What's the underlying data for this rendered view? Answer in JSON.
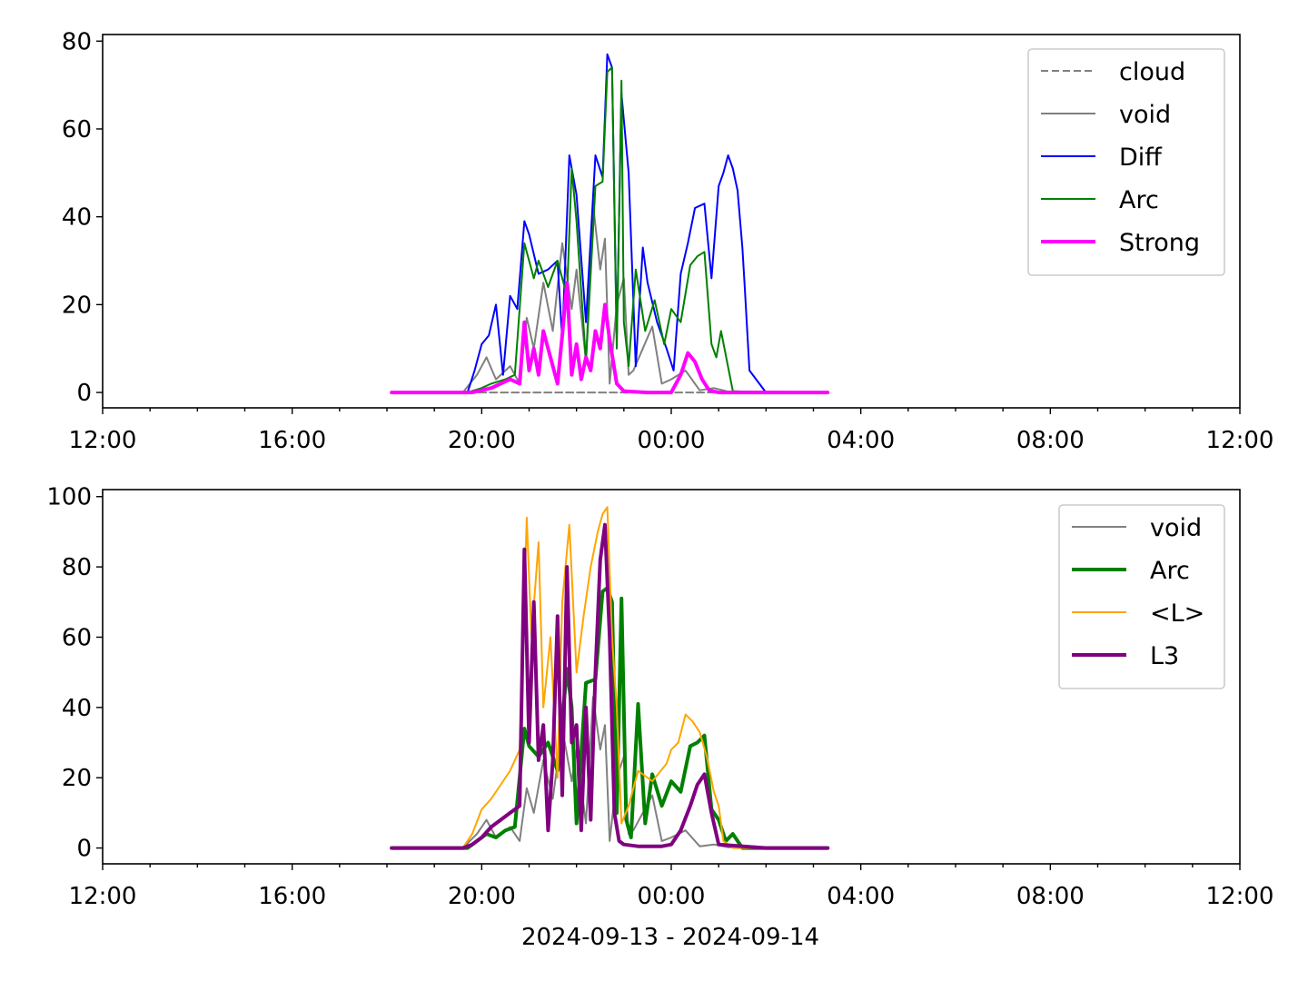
{
  "figure": {
    "xlabel": "2024-09-13 - 2024-09-14"
  },
  "chart_data": [
    {
      "type": "line",
      "title": "",
      "xlabel": "",
      "ylabel": "",
      "x_unit": "hours since 2024-09-13 00:00",
      "xlim": [
        12,
        36
      ],
      "ylim": [
        -3.5,
        81.5
      ],
      "x_ticks": [
        12,
        16,
        20,
        24,
        28,
        32,
        36
      ],
      "x_tick_labels": [
        "12:00",
        "16:00",
        "20:00",
        "00:00",
        "04:00",
        "08:00",
        "12:00"
      ],
      "y_ticks": [
        0,
        20,
        40,
        60,
        80
      ],
      "y_tick_labels": [
        "0",
        "20",
        "40",
        "60",
        "80"
      ],
      "grid": false,
      "legend": "top-right",
      "series": [
        {
          "name": "cloud",
          "color": "#808080",
          "line_style": "dashed",
          "line_width": "thin",
          "x": [
            18.1,
            27.3
          ],
          "values": [
            0,
            0
          ]
        },
        {
          "name": "void",
          "color": "#808080",
          "line_style": "solid",
          "line_width": "thin",
          "x": [
            18.1,
            19.6,
            19.9,
            20.1,
            20.3,
            20.6,
            20.8,
            20.95,
            21.1,
            21.3,
            21.5,
            21.7,
            21.9,
            22.0,
            22.2,
            22.35,
            22.5,
            22.6,
            22.7,
            22.85,
            23.0,
            23.1,
            23.2,
            23.4,
            23.6,
            23.8,
            24.0,
            24.3,
            24.6,
            24.9,
            25.2,
            26.0,
            27.3
          ],
          "values": [
            0,
            0,
            4,
            8,
            3,
            6,
            2,
            17,
            10,
            25,
            14,
            34,
            19,
            28,
            7,
            43,
            28,
            35,
            2,
            20,
            26,
            4,
            5,
            10,
            15,
            2,
            3,
            5,
            0.5,
            1,
            0.2,
            0.2,
            0
          ]
        },
        {
          "name": "Diff",
          "color": "#0000ff",
          "line_style": "solid",
          "line_width": "thin",
          "x": [
            18.1,
            19.7,
            19.85,
            20.0,
            20.15,
            20.3,
            20.45,
            20.6,
            20.75,
            20.9,
            21.0,
            21.2,
            21.4,
            21.6,
            21.7,
            21.85,
            22.0,
            22.2,
            22.4,
            22.55,
            22.65,
            22.75,
            22.85,
            22.95,
            23.1,
            23.25,
            23.4,
            23.5,
            23.7,
            23.9,
            24.05,
            24.2,
            24.35,
            24.5,
            24.7,
            24.85,
            25.0,
            25.1,
            25.2,
            25.3,
            25.4,
            25.5,
            25.55,
            25.65,
            26.0,
            27.3
          ],
          "values": [
            0,
            0,
            5,
            11,
            13,
            20,
            4,
            22,
            19,
            39,
            36,
            27,
            28,
            30,
            12,
            54,
            45,
            16,
            54,
            49,
            77,
            74,
            12,
            68,
            50,
            6,
            33,
            25,
            16,
            10,
            5,
            27,
            34,
            42,
            43,
            26,
            47,
            50,
            54,
            51,
            46,
            33,
            24,
            5,
            0,
            0
          ]
        },
        {
          "name": "Arc",
          "color": "#008000",
          "line_style": "solid",
          "line_width": "thin",
          "x": [
            18.1,
            19.7,
            20.0,
            20.2,
            20.5,
            20.7,
            20.9,
            21.0,
            21.1,
            21.2,
            21.4,
            21.6,
            21.8,
            21.9,
            22.0,
            22.2,
            22.4,
            22.55,
            22.65,
            22.75,
            22.85,
            22.95,
            23.0,
            23.1,
            23.25,
            23.45,
            23.65,
            23.85,
            24.0,
            24.2,
            24.4,
            24.55,
            24.7,
            24.85,
            24.95,
            25.05,
            25.3,
            26.0,
            27.3
          ],
          "values": [
            0,
            0,
            1,
            2,
            3,
            4,
            34,
            30,
            26,
            30,
            24,
            30,
            22,
            51,
            39,
            7,
            47,
            48,
            73,
            74,
            10,
            71,
            16,
            6,
            28,
            14,
            21,
            11,
            19,
            16,
            29,
            31,
            32,
            11,
            8,
            14,
            0.3,
            0,
            0
          ]
        },
        {
          "name": "Strong",
          "color": "#ff00ff",
          "line_style": "solid",
          "line_width": "thick",
          "x": [
            18.1,
            19.8,
            20.0,
            20.2,
            20.4,
            20.6,
            20.8,
            20.9,
            21.0,
            21.1,
            21.2,
            21.3,
            21.45,
            21.6,
            21.7,
            21.8,
            21.9,
            22.0,
            22.1,
            22.2,
            22.3,
            22.4,
            22.5,
            22.6,
            22.7,
            22.85,
            23.0,
            23.5,
            24.0,
            24.2,
            24.35,
            24.5,
            24.65,
            24.8,
            25.0,
            26.0,
            27.3
          ],
          "values": [
            0,
            0,
            0.5,
            1,
            2,
            3,
            2,
            16,
            5,
            10,
            4,
            14,
            8,
            2,
            13,
            25,
            4,
            11,
            3,
            8,
            5,
            14,
            10,
            20,
            12,
            2,
            0.3,
            0,
            0,
            4,
            9,
            7,
            3,
            0.5,
            0,
            0,
            0
          ]
        }
      ]
    },
    {
      "type": "line",
      "title": "",
      "xlabel": "2024-09-13 - 2024-09-14",
      "ylabel": "",
      "x_unit": "hours since 2024-09-13 00:00",
      "xlim": [
        12,
        36
      ],
      "ylim": [
        -4.5,
        102
      ],
      "x_ticks": [
        12,
        16,
        20,
        24,
        28,
        32,
        36
      ],
      "x_tick_labels": [
        "12:00",
        "16:00",
        "20:00",
        "00:00",
        "04:00",
        "08:00",
        "12:00"
      ],
      "y_ticks": [
        0,
        20,
        40,
        60,
        80,
        100
      ],
      "y_tick_labels": [
        "0",
        "20",
        "40",
        "60",
        "80",
        "100"
      ],
      "grid": false,
      "legend": "top-right",
      "series": [
        {
          "name": "void",
          "color": "#808080",
          "line_style": "solid",
          "line_width": "thin",
          "x": [
            18.1,
            19.6,
            19.9,
            20.1,
            20.3,
            20.6,
            20.8,
            20.95,
            21.1,
            21.3,
            21.5,
            21.7,
            21.9,
            22.0,
            22.2,
            22.35,
            22.5,
            22.6,
            22.7,
            22.85,
            23.0,
            23.1,
            23.2,
            23.4,
            23.6,
            23.8,
            24.0,
            24.3,
            24.6,
            24.9,
            25.2,
            26.0,
            27.3
          ],
          "values": [
            0,
            0,
            4,
            8,
            3,
            6,
            2,
            17,
            10,
            25,
            14,
            34,
            19,
            28,
            7,
            43,
            28,
            35,
            2,
            20,
            26,
            4,
            5,
            10,
            15,
            2,
            3,
            5,
            0.5,
            1,
            0.2,
            0.2,
            0
          ]
        },
        {
          "name": "Arc",
          "color": "#008000",
          "line_style": "solid",
          "line_width": "thick",
          "x": [
            18.1,
            19.7,
            19.9,
            20.1,
            20.3,
            20.5,
            20.7,
            20.9,
            21.0,
            21.2,
            21.4,
            21.6,
            21.8,
            21.9,
            22.0,
            22.2,
            22.4,
            22.55,
            22.65,
            22.75,
            22.85,
            22.95,
            23.05,
            23.15,
            23.3,
            23.45,
            23.6,
            23.8,
            24.0,
            24.2,
            24.4,
            24.55,
            24.7,
            24.85,
            25.0,
            25.15,
            25.3,
            25.5,
            26.0,
            27.3
          ],
          "values": [
            0,
            0,
            2,
            4,
            3,
            5,
            6,
            34,
            29,
            26,
            30,
            22,
            51,
            40,
            7,
            47,
            48,
            73,
            74,
            70,
            10,
            71,
            8,
            3,
            41,
            7,
            21,
            12,
            19,
            16,
            29,
            30,
            32,
            11,
            8,
            2,
            4,
            0,
            0,
            0
          ]
        },
        {
          "name": "<L>",
          "color": "#ffa500",
          "line_style": "solid",
          "line_width": "thin",
          "x": [
            18.1,
            19.6,
            19.8,
            20.0,
            20.2,
            20.4,
            20.6,
            20.8,
            20.95,
            21.05,
            21.2,
            21.3,
            21.45,
            21.6,
            21.7,
            21.85,
            22.0,
            22.15,
            22.3,
            22.45,
            22.55,
            22.65,
            22.75,
            22.85,
            22.95,
            23.1,
            23.3,
            23.6,
            23.9,
            24.0,
            24.15,
            24.3,
            24.45,
            24.6,
            24.75,
            24.9,
            25.0,
            25.1,
            25.3,
            26.0,
            27.3
          ],
          "values": [
            0,
            0,
            4,
            11,
            14,
            18,
            22,
            28,
            94,
            60,
            87,
            40,
            60,
            20,
            70,
            92,
            50,
            66,
            80,
            90,
            95,
            97,
            60,
            40,
            7,
            12,
            22,
            19,
            24,
            28,
            30,
            38,
            36,
            33,
            26,
            16,
            12,
            2,
            0,
            0,
            0
          ]
        },
        {
          "name": "L3",
          "color": "#800080",
          "line_style": "solid",
          "line_width": "thick",
          "x": [
            18.1,
            19.6,
            19.8,
            20.0,
            20.2,
            20.4,
            20.6,
            20.8,
            20.9,
            21.0,
            21.1,
            21.2,
            21.3,
            21.4,
            21.5,
            21.6,
            21.7,
            21.8,
            21.9,
            22.0,
            22.1,
            22.2,
            22.3,
            22.4,
            22.5,
            22.6,
            22.7,
            22.8,
            22.9,
            23.0,
            23.3,
            23.8,
            24.0,
            24.2,
            24.4,
            24.55,
            24.7,
            24.85,
            25.0,
            26.0,
            27.3
          ],
          "values": [
            0,
            0,
            1,
            3,
            6,
            8,
            10,
            12,
            85,
            30,
            70,
            25,
            35,
            5,
            25,
            66,
            15,
            80,
            30,
            35,
            5,
            40,
            8,
            50,
            82,
            92,
            60,
            10,
            2,
            1,
            0.5,
            0.5,
            1,
            5,
            12,
            18,
            21,
            10,
            1,
            0,
            0
          ]
        }
      ]
    }
  ]
}
